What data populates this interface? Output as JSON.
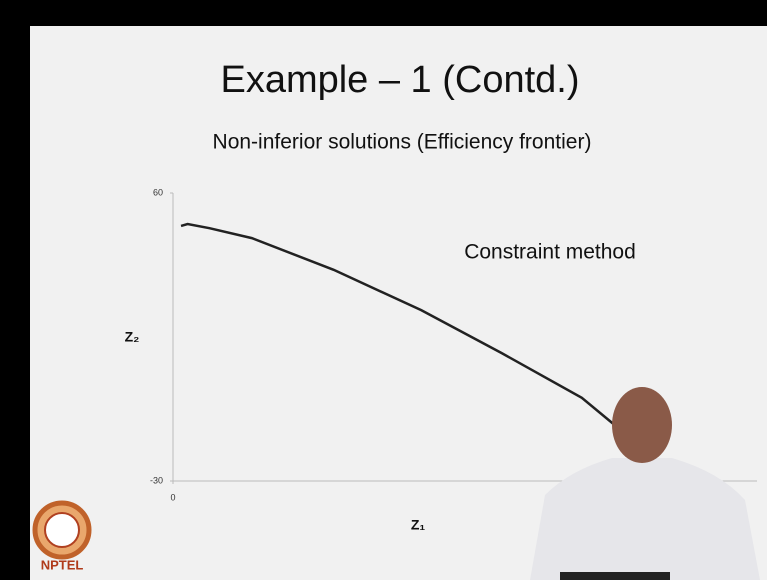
{
  "chart_data": {
    "type": "line",
    "title": "Example – 1 (Contd.)",
    "subtitle": "Non-inferior solutions (Efficiency frontier)",
    "annotation": "Constraint method",
    "x_label": "Z₁",
    "y_label": "Z₂",
    "x": [
      1.1,
      2,
      5,
      10.8,
      22,
      34,
      45,
      56,
      60.5
    ],
    "series": [
      {
        "color": "#222222",
        "values": [
          49.7,
          50.3,
          49,
          45.9,
          36,
          23.4,
          10,
          -4,
          -12.5
        ]
      }
    ],
    "xlim": [
      0,
      80
    ],
    "xticks": [
      0
    ],
    "ylim": [
      -30,
      60
    ],
    "yticks": [
      -30,
      60
    ],
    "logo_text": "NPTEL"
  }
}
